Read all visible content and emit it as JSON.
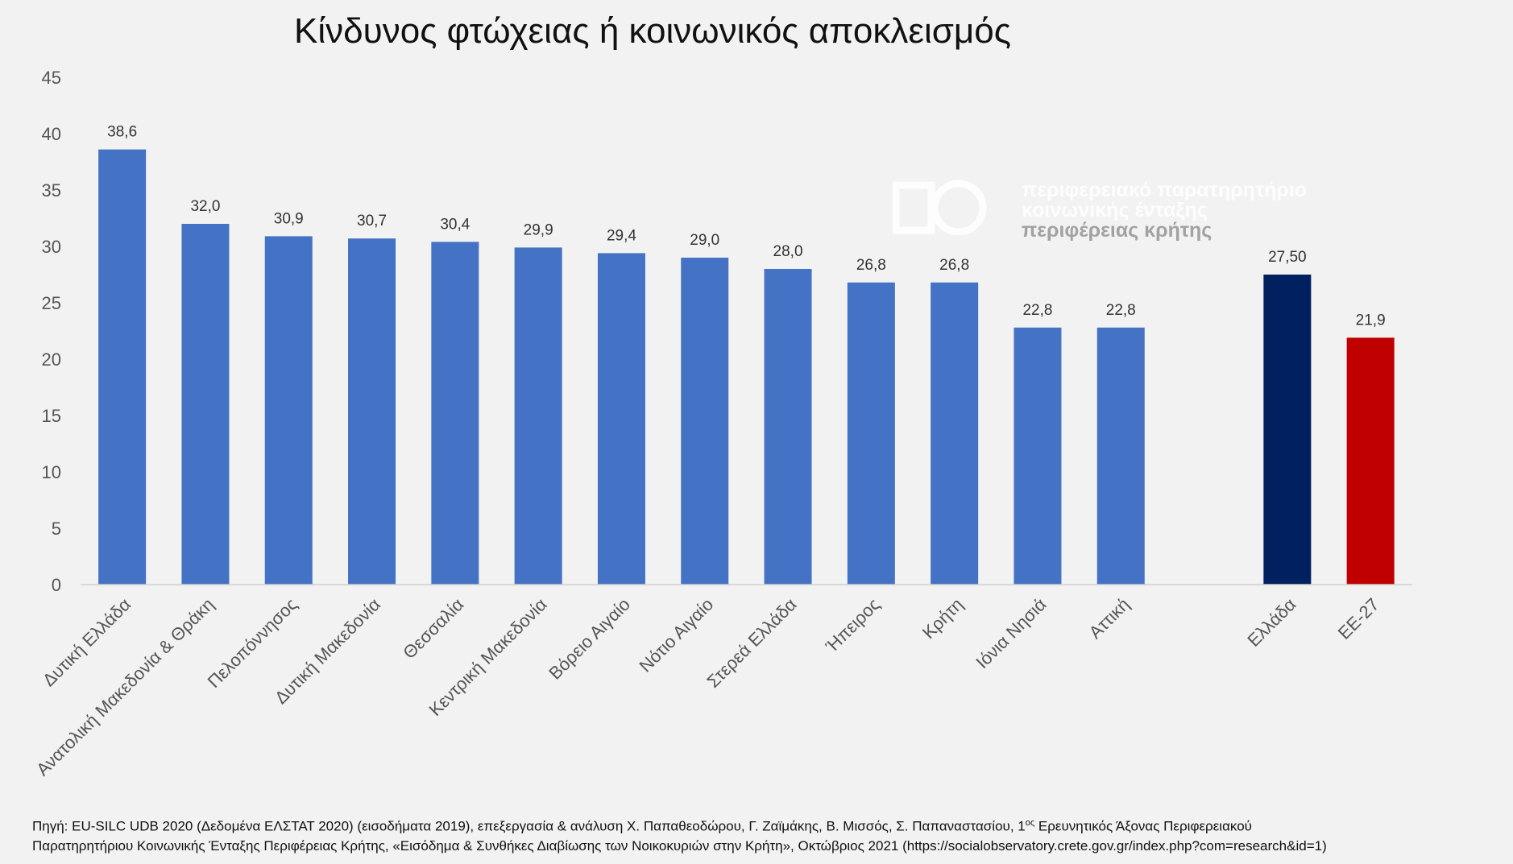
{
  "chart_data": {
    "type": "bar",
    "title": "Κίνδυνος φτώχειας ή κοινωνικός αποκλεισμός",
    "xlabel": "",
    "ylabel": "",
    "ylim": [
      0,
      45
    ],
    "yticks": [
      0,
      5,
      10,
      15,
      20,
      25,
      30,
      35,
      40,
      45
    ],
    "grid": false,
    "categories": [
      "Δυτική Ελλάδα",
      "Ανατολική Μακεδονία & Θράκη",
      "Πελοπόννησος",
      "Δυτική Μακεδονία",
      "Θεσσαλία",
      "Κεντρική Μακεδονία",
      "Βόρειο Αιγαίο",
      "Νότιο Αιγαίο",
      "Στερεά Ελλάδα",
      "Ήπειρος",
      "Κρήτη",
      "Ιόνια Νησιά",
      "Αττική",
      "Ελλάδα",
      "ΕΕ-27"
    ],
    "values": [
      38.6,
      32.0,
      30.9,
      30.7,
      30.4,
      29.9,
      29.4,
      29.0,
      28.0,
      26.8,
      26.8,
      22.8,
      22.8,
      27.5,
      21.9
    ],
    "value_labels": [
      "38,6",
      "32,0",
      "30,9",
      "30,7",
      "30,4",
      "29,9",
      "29,4",
      "29,0",
      "28,0",
      "26,8",
      "26,8",
      "22,8",
      "22,8",
      "27,50",
      "21,9"
    ],
    "colors": [
      "#4472c4",
      "#4472c4",
      "#4472c4",
      "#4472c4",
      "#4472c4",
      "#4472c4",
      "#4472c4",
      "#4472c4",
      "#4472c4",
      "#4472c4",
      "#4472c4",
      "#4472c4",
      "#4472c4",
      "#002060",
      "#c00000"
    ]
  },
  "watermark": {
    "lines": [
      "περιφερειακό παρατηρητήριο",
      "κοινωνικής ένταξης",
      "περιφέρειας κρήτης"
    ]
  },
  "source": {
    "line1_a": "Πηγή: EU-SILC UDB 2020 (Δεδομένα ΕΛΣΤΑΤ 2020) (εισοδήματα 2019), επεξεργασία & ανάλυση Χ. Παπαθεοδώρου, Γ. Ζαϊμάκης, Β. Μισσός, Σ. Παπαναστασίου, 1",
    "line1_sup": "ος",
    "line1_b": " Ερευνητικός Άξονας Περιφερειακού",
    "line2": "Παρατηρητήριου Κοινωνικής Ένταξης Περιφέρειας Κρήτης, «Εισόδημα & Συνθήκες Διαβίωσης των Νοικοκυριών στην Κρήτη», Οκτώβριος 2021 (https://socialobservatory.crete.gov.gr/index.php?com=research&id=1)"
  }
}
